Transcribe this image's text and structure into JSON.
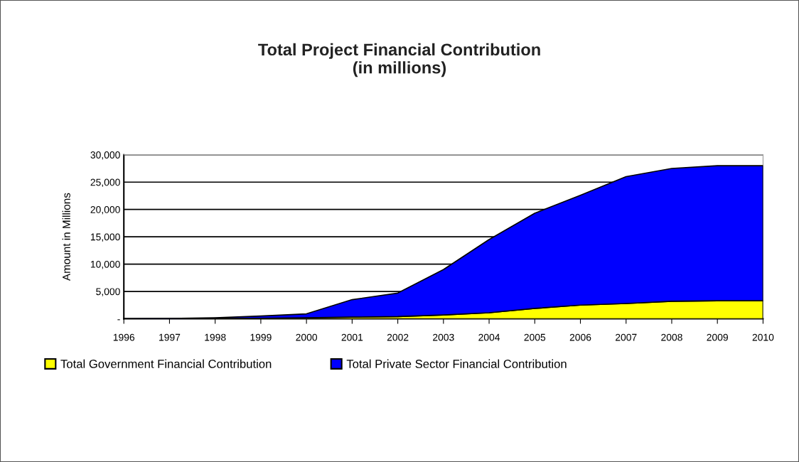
{
  "chart_data": {
    "type": "area",
    "stacked": true,
    "title": "Total Project Financial Contribution\n(in millions)",
    "ylabel": "Amount in Millions",
    "categories": [
      "1996",
      "1997",
      "1998",
      "1999",
      "2000",
      "2001",
      "2002",
      "2003",
      "2004",
      "2005",
      "2006",
      "2007",
      "2008",
      "2009",
      "2010"
    ],
    "series": [
      {
        "name": "Total Government Financial Contribution",
        "color": "#ffff00",
        "values": [
          0,
          0,
          50,
          100,
          200,
          300,
          400,
          700,
          1100,
          1900,
          2500,
          2800,
          3200,
          3300,
          3300
        ]
      },
      {
        "name": "Total Private Sector Financial Contribution",
        "color": "#0000ff",
        "values": [
          0,
          50,
          150,
          400,
          700,
          3200,
          4300,
          8300,
          13400,
          17400,
          20100,
          23200,
          24300,
          24700,
          24700
        ]
      }
    ],
    "ylim": [
      0,
      30000
    ],
    "yticks": [
      {
        "value": 0,
        "label": "-"
      },
      {
        "value": 5000,
        "label": "5,000"
      },
      {
        "value": 10000,
        "label": "10,000"
      },
      {
        "value": 15000,
        "label": "15,000"
      },
      {
        "value": 20000,
        "label": "20,000"
      },
      {
        "value": 25000,
        "label": "25,000"
      },
      {
        "value": 30000,
        "label": "30,000"
      }
    ],
    "grid": "y",
    "legend": "bottom"
  }
}
